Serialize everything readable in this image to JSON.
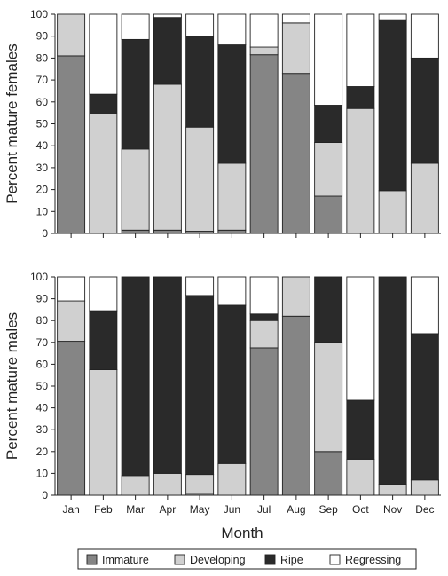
{
  "chart_data": [
    {
      "type": "bar",
      "stacked": true,
      "ylabel": "Percent mature females",
      "ylim": [
        0,
        100
      ],
      "yticks": [
        0,
        10,
        20,
        30,
        40,
        50,
        60,
        70,
        80,
        90,
        100
      ],
      "categories": [
        "Jan",
        "Feb",
        "Mar",
        "Apr",
        "May",
        "Jun",
        "Jul",
        "Aug",
        "Sep",
        "Oct",
        "Nov",
        "Dec"
      ],
      "series": [
        {
          "name": "Immature",
          "values": [
            81,
            0,
            1.5,
            1.5,
            1,
            1.5,
            81.5,
            73,
            17,
            0,
            0,
            0
          ]
        },
        {
          "name": "Developing",
          "values": [
            19,
            54.5,
            37,
            66.5,
            47.5,
            30.5,
            3.5,
            23,
            24.5,
            57,
            19.5,
            32
          ]
        },
        {
          "name": "Ripe",
          "values": [
            0,
            9,
            50,
            30.5,
            41.5,
            54,
            0,
            0,
            17,
            10,
            78,
            48
          ]
        },
        {
          "name": "Regressing",
          "values": [
            0,
            36.5,
            11.5,
            1.5,
            10,
            14,
            15,
            4,
            41.5,
            33,
            2.5,
            20
          ]
        }
      ]
    },
    {
      "type": "bar",
      "stacked": true,
      "ylabel": "Percent mature males",
      "ylim": [
        0,
        100
      ],
      "yticks": [
        0,
        10,
        20,
        30,
        40,
        50,
        60,
        70,
        80,
        90,
        100
      ],
      "categories": [
        "Jan",
        "Feb",
        "Mar",
        "Apr",
        "May",
        "Jun",
        "Jul",
        "Aug",
        "Sep",
        "Oct",
        "Nov",
        "Dec"
      ],
      "series": [
        {
          "name": "Immature",
          "values": [
            70.5,
            0,
            0,
            0,
            1,
            0,
            67.5,
            82,
            20,
            0,
            0,
            0
          ]
        },
        {
          "name": "Developing",
          "values": [
            18.5,
            57.5,
            9,
            10,
            8.5,
            14.5,
            12.5,
            18,
            50,
            16.5,
            5,
            7
          ]
        },
        {
          "name": "Ripe",
          "values": [
            0,
            27,
            91,
            90,
            82,
            72.5,
            3,
            0,
            30,
            27,
            95,
            67
          ]
        },
        {
          "name": "Regressing",
          "values": [
            11,
            15.5,
            0,
            0,
            8.5,
            13,
            17,
            0,
            0,
            56.5,
            0,
            26
          ]
        }
      ]
    }
  ],
  "xaxis_label": "Month",
  "legend": [
    {
      "name": "Immature",
      "color": "#858585"
    },
    {
      "name": "Developing",
      "color": "#d0d0d0"
    },
    {
      "name": "Ripe",
      "color": "#2a2a2a"
    },
    {
      "name": "Regressing",
      "color": "#ffffff"
    }
  ]
}
